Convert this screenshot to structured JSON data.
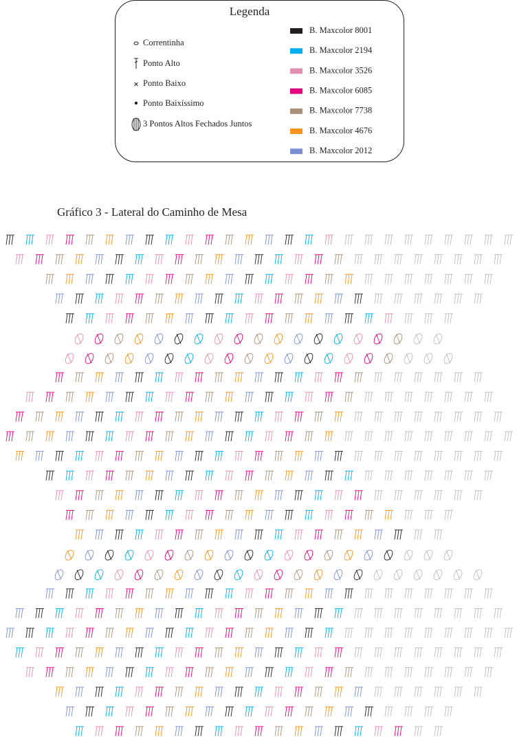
{
  "legend": {
    "title": "Legenda",
    "stitches": [
      "Correntinha",
      "Ponto Alto",
      "Ponto Baixo",
      "Ponto Baixíssimo",
      "3 Pontos Altos Fechados Juntos"
    ],
    "colors": [
      {
        "name": "B. Maxcolor 8001",
        "color": "#231f20"
      },
      {
        "name": "B. Maxcolor 2194",
        "color": "#00aeef"
      },
      {
        "name": "B. Maxcolor 3526",
        "color": "#e58fb0"
      },
      {
        "name": "B. Maxcolor 6085",
        "color": "#e5007e"
      },
      {
        "name": "B. Maxcolor 7738",
        "color": "#a89078"
      },
      {
        "name": "B. Maxcolor 4676",
        "color": "#f7931e"
      },
      {
        "name": "B. Maxcolor 2012",
        "color": "#7b8fd0"
      }
    ]
  },
  "chart": {
    "title": "Gráfico 3 - Lateral do Caminho de Mesa"
  }
}
